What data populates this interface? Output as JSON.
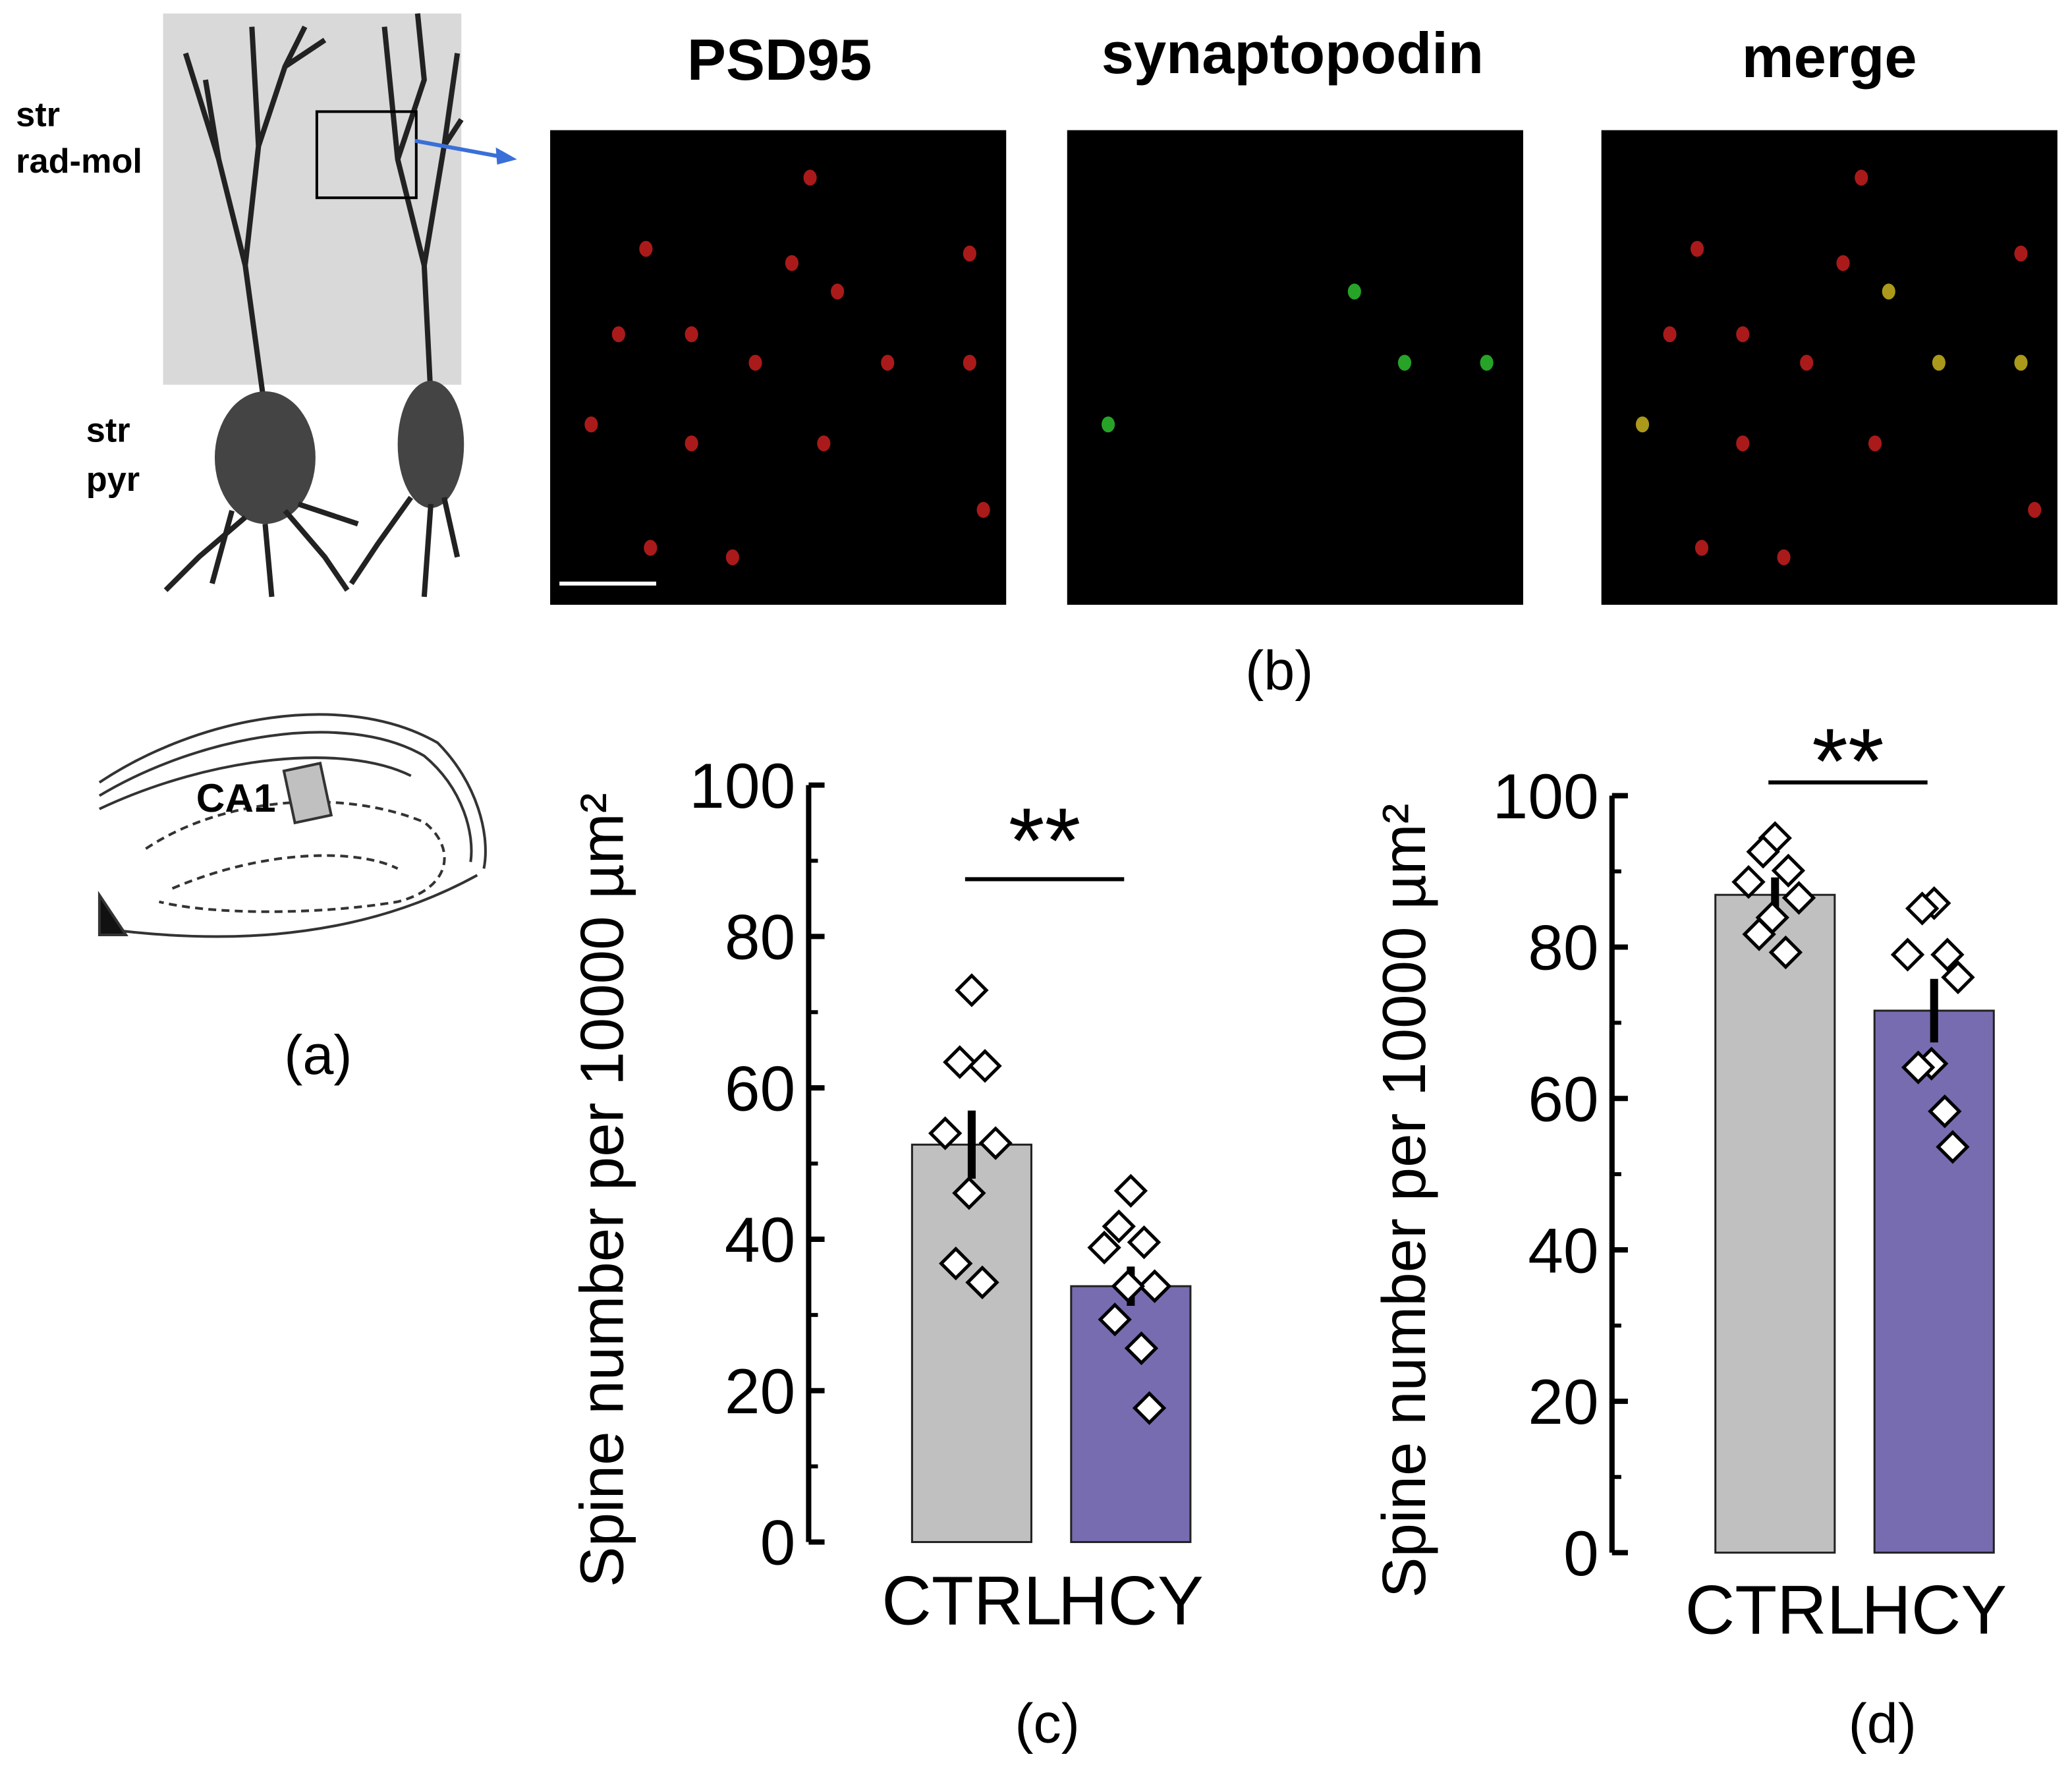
{
  "figure": {
    "panel_a": {
      "layer_top": "str",
      "layer_top_2": "rad-mol",
      "layer_bottom": "str",
      "layer_bottom_2": "pyr",
      "region": "CA1",
      "label": "(a)"
    },
    "panel_b": {
      "images": [
        "PSD95",
        "synaptopodin",
        "merge"
      ],
      "label": "(b)"
    }
  },
  "chart_data": [
    {
      "type": "bar",
      "label": "(c)",
      "ylabel": "Spine number per 10000 µm²",
      "annotation": "**",
      "categories": [
        "CTRL",
        "HCY"
      ],
      "values": [
        52.5,
        33.8
      ],
      "errors": [
        4.5,
        2.6
      ],
      "colors": [
        "#c0c0c0",
        "#776cb0"
      ],
      "points": [
        [
          72.9,
          63.4,
          62.9,
          54.0,
          52.7,
          46.1,
          36.8,
          34.3
        ],
        [
          46.4,
          41.7,
          39.6,
          38.9,
          33.8,
          33.8,
          29.4,
          25.6,
          17.7
        ]
      ],
      "ylim": [
        0,
        100
      ],
      "yticks": [
        0,
        20,
        40,
        60,
        80,
        100
      ]
    },
    {
      "type": "bar",
      "label": "(d)",
      "ylabel": "Spine number per 10000 µm²",
      "annotation": "**",
      "categories": [
        "CTRL",
        "HCY"
      ],
      "values": [
        86.9,
        71.6
      ],
      "errors": [
        2.3,
        4.2
      ],
      "colors": [
        "#c0c0c0",
        "#776cb0"
      ],
      "points": [
        [
          94.4,
          92.6,
          90.1,
          88.6,
          86.5,
          83.9,
          81.7,
          79.3
        ],
        [
          85.8,
          85.1,
          79.0,
          79.0,
          76.0,
          64.6,
          64.1,
          58.3,
          53.6
        ]
      ],
      "ylim": [
        0,
        100
      ],
      "yticks": [
        0,
        20,
        40,
        60,
        80,
        100
      ]
    }
  ]
}
